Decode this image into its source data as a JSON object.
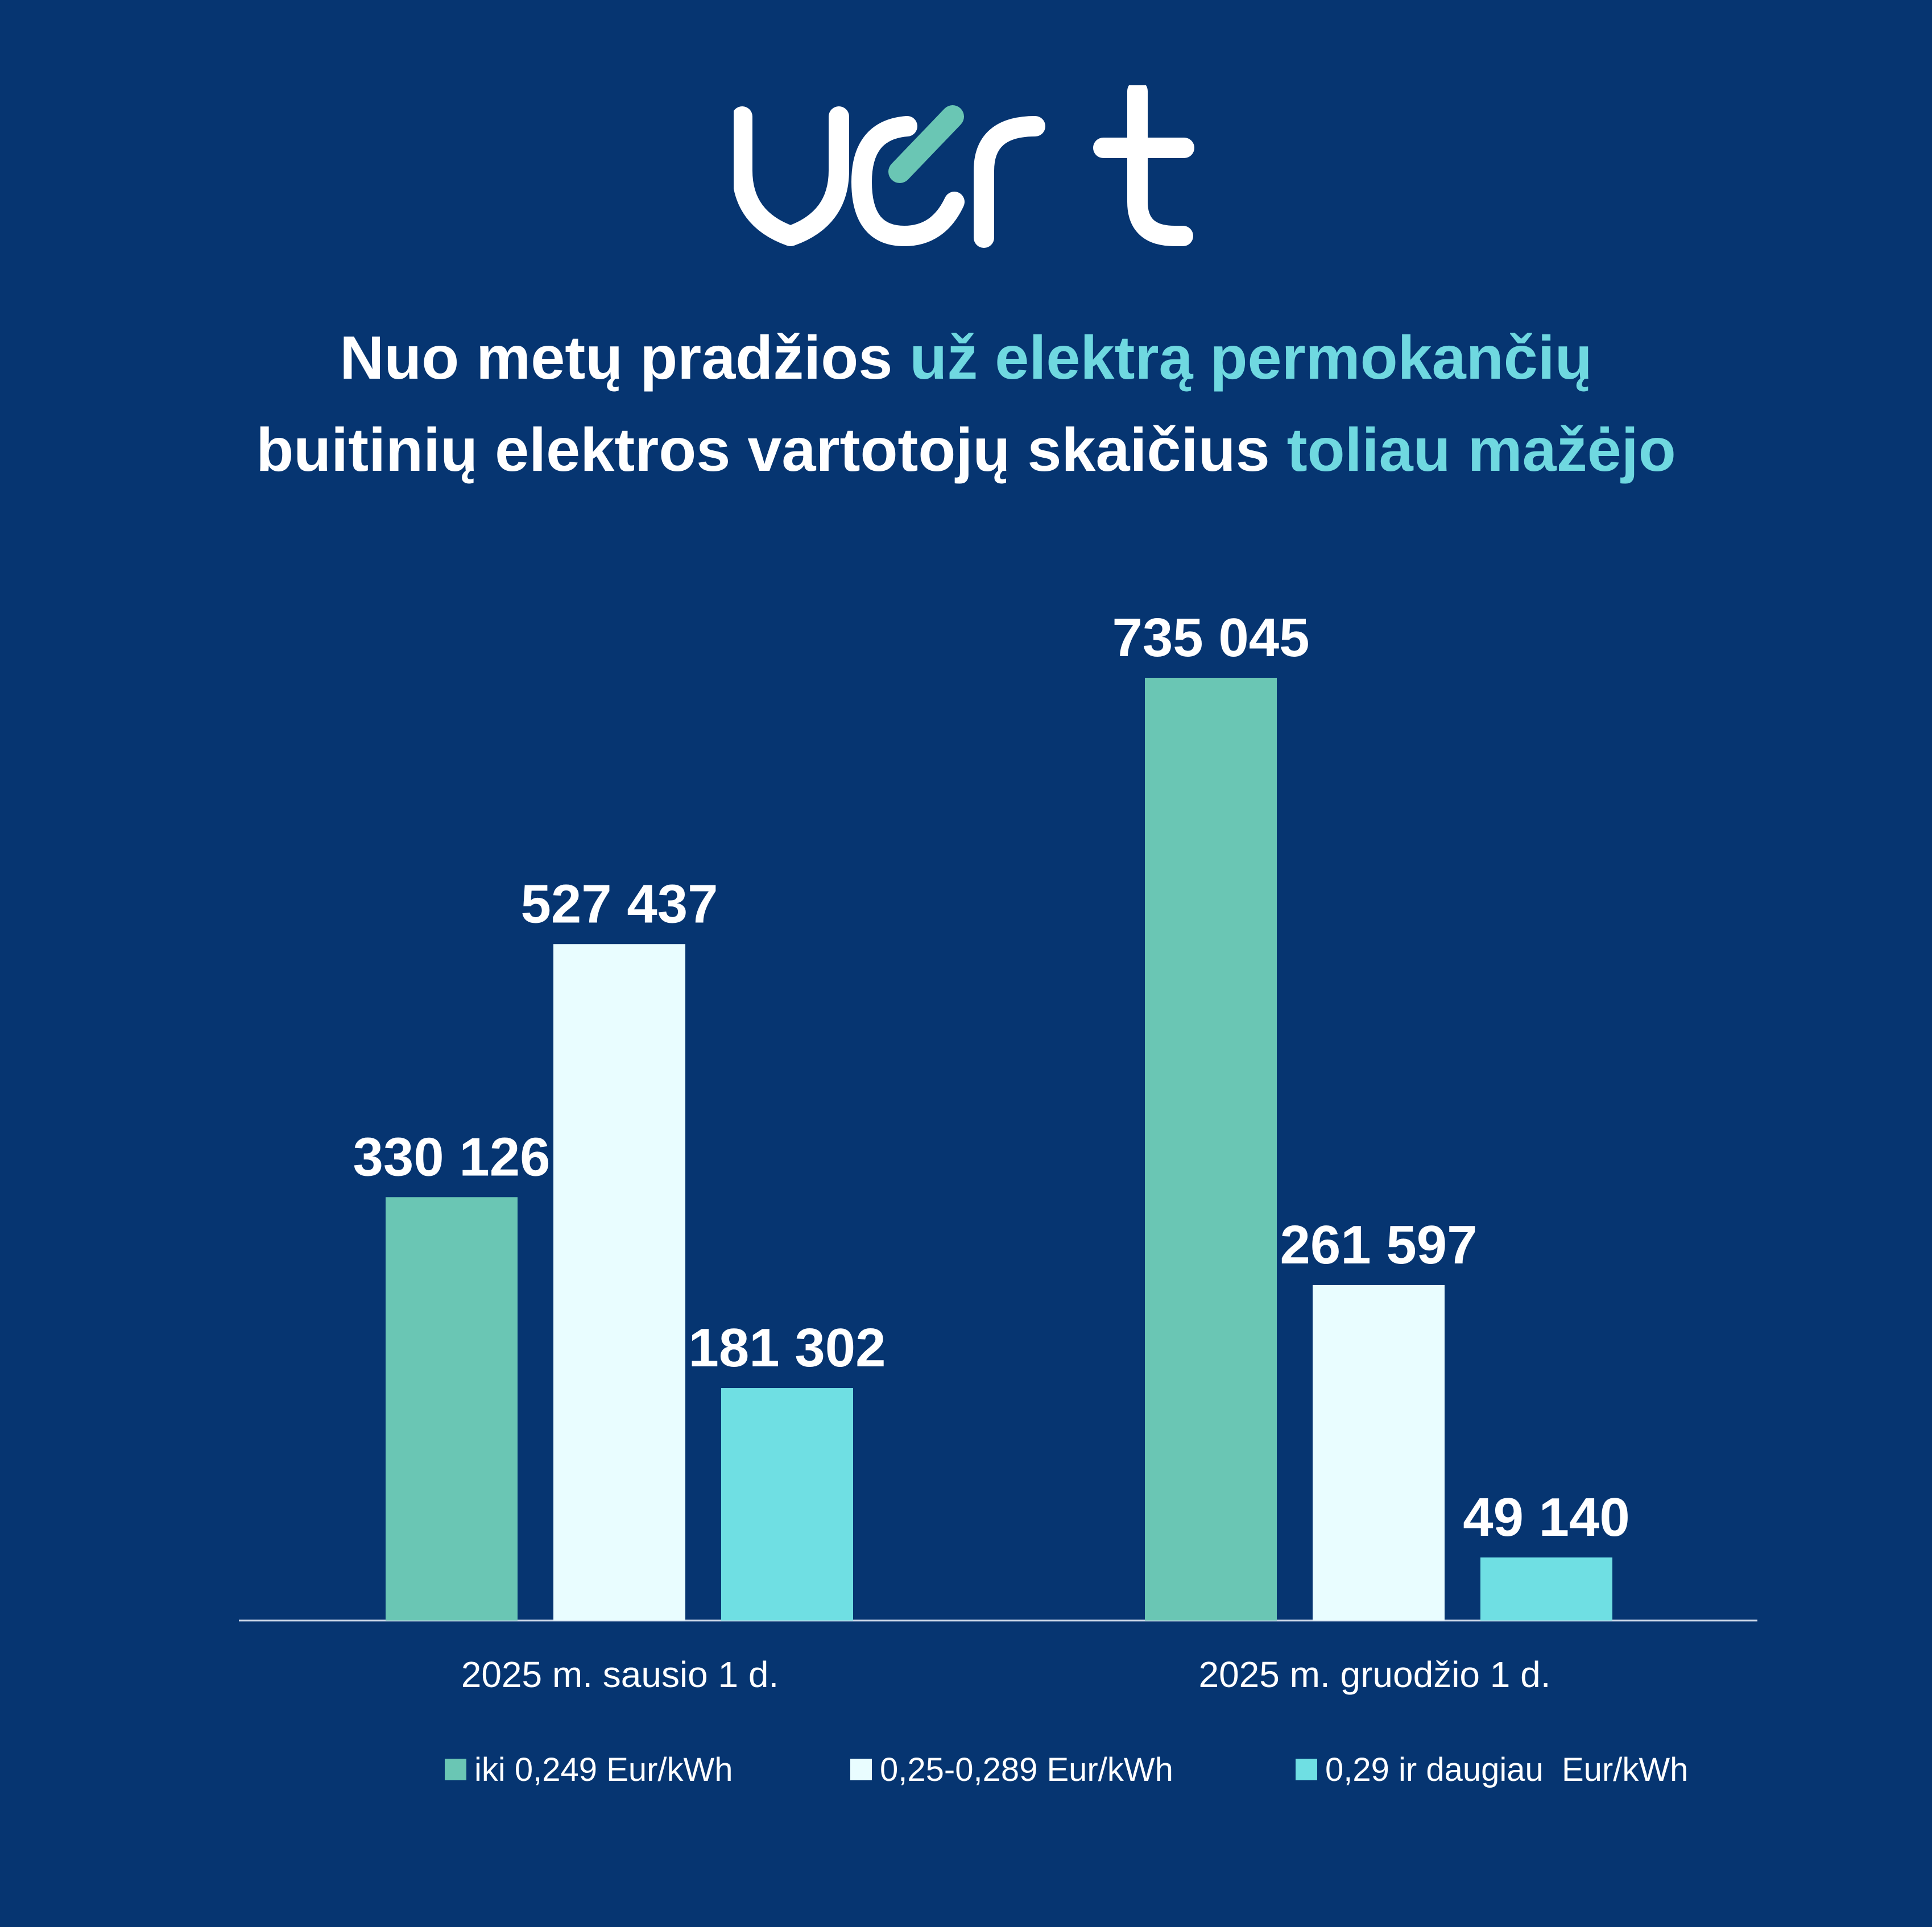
{
  "logo": {
    "text": "vert",
    "name": "vert-logo"
  },
  "title": {
    "line1_plain": "Nuo metų pradžios ",
    "line1_highlight": "už elektrą permokančių",
    "line2_plain": "buitinių elektros vartotojų skaičius ",
    "line2_highlight": "toliau mažėjo"
  },
  "colors": {
    "background": "#063571",
    "highlight": "#6fd8e0",
    "series": [
      "#6ac6b4",
      "#e9fdff",
      "#6fdfe3"
    ]
  },
  "chart_data": {
    "type": "bar",
    "categories": [
      "2025 m. sausio 1 d.",
      "2025 m. gruodžio 1 d."
    ],
    "series": [
      {
        "name": "iki 0,249 Eur/kWh",
        "values": [
          330126,
          735045
        ],
        "labels": [
          "330 126",
          "735 045"
        ]
      },
      {
        "name": "0,25-0,289 Eur/kWh",
        "values": [
          527437,
          261597
        ],
        "labels": [
          "527 437",
          "261 597"
        ]
      },
      {
        "name": "0,29 ir daugiau  Eur/kWh",
        "values": [
          181302,
          49140
        ],
        "labels": [
          "181 302",
          "49 140"
        ]
      }
    ],
    "grid": false,
    "legend_position": "bottom"
  }
}
